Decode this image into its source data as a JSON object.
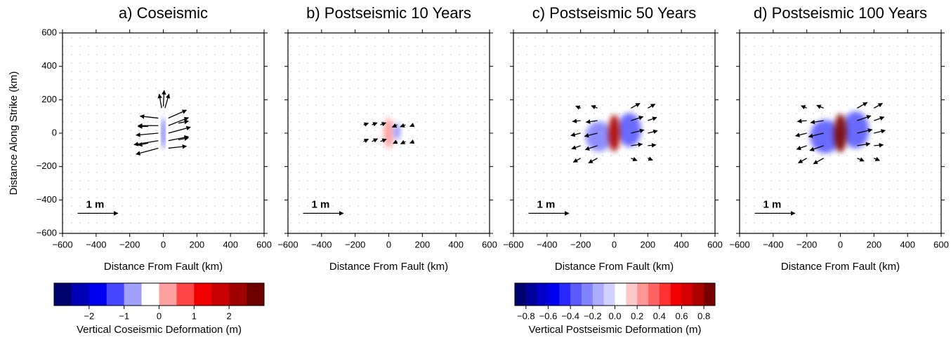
{
  "chart_data": [
    {
      "type": "vector",
      "title": "a) Coseismic",
      "xlabel": "Distance From Fault (km)",
      "ylabel": "Distance Along Strike (km)",
      "xlim": [
        -600,
        600
      ],
      "ylim": [
        -600,
        600
      ],
      "xticks": [
        {
          "value": -600,
          "label": "−600"
        },
        {
          "value": -400,
          "label": "−400"
        },
        {
          "value": -200,
          "label": "−200"
        },
        0,
        200,
        400,
        600
      ],
      "yticks": [
        {
          "value": -600,
          "label": "−600"
        },
        {
          "value": -400,
          "label": "−400"
        },
        {
          "value": -200,
          "label": "−200"
        },
        0,
        200,
        400,
        600
      ],
      "show_ytick_labels": true,
      "colorbar": 4,
      "arrow_scale": 240,
      "scale": {
        "label": "1 m",
        "value": 1
      },
      "arrows": {
        "x": [
          -30,
          -30,
          -30,
          -30,
          -30,
          30,
          30,
          30,
          30,
          30,
          -10,
          0,
          10,
          -90,
          -90,
          90,
          90
        ],
        "y": [
          -90,
          -45,
          0,
          45,
          90,
          -90,
          -45,
          0,
          45,
          90,
          150,
          160,
          150,
          -60,
          40,
          -40,
          60
        ],
        "u": [
          -0.55,
          -0.6,
          -0.55,
          -0.5,
          -0.45,
          0.45,
          0.5,
          0.55,
          0.5,
          0.45,
          -0.06,
          0.02,
          0.1,
          -0.25,
          -0.25,
          0.25,
          0.25
        ],
        "v": [
          -0.15,
          -0.1,
          -0.05,
          0,
          0.05,
          0.05,
          0.1,
          0.15,
          0.2,
          0.2,
          0.35,
          0.4,
          0.35,
          -0.05,
          0,
          0.05,
          0.05
        ]
      },
      "patches": [
        {
          "x": 0,
          "y": 0,
          "rx": 8,
          "ry": 95,
          "value": -1.8
        }
      ]
    },
    {
      "type": "vector",
      "title": "b) Postseismic 10 Years",
      "xlabel": "Distance From Fault (km)",
      "xlim": [
        -600,
        600
      ],
      "ylim": [
        -600,
        600
      ],
      "xticks": [
        {
          "value": -600,
          "label": "−600"
        },
        {
          "value": -400,
          "label": "−400"
        },
        {
          "value": -200,
          "label": "−200"
        },
        0,
        200,
        400,
        600
      ],
      "yticks": [
        -600,
        -400,
        -200,
        0,
        200,
        400,
        600
      ],
      "show_ytick_labels": false,
      "colorbar": 5,
      "arrow_scale": 240,
      "scale": {
        "label": "1 m",
        "value": 1
      },
      "arrows": {
        "x": [
          -150,
          -100,
          -50,
          -150,
          -100,
          -50,
          50,
          100,
          150,
          50,
          100,
          150
        ],
        "y": [
          -50,
          -50,
          -50,
          50,
          50,
          50,
          -50,
          -50,
          -50,
          50,
          50,
          50
        ],
        "u": [
          0.12,
          0.14,
          0.15,
          0.12,
          0.13,
          0.14,
          -0.1,
          -0.12,
          -0.1,
          -0.12,
          -0.13,
          -0.1
        ],
        "v": [
          0.06,
          0.07,
          0.06,
          0.04,
          0.05,
          0.05,
          -0.05,
          -0.06,
          -0.04,
          -0.06,
          -0.05,
          -0.04
        ]
      },
      "patches": [
        {
          "x": 0,
          "y": 0,
          "rx": 30,
          "ry": 90,
          "value": 0.3
        },
        {
          "x": 50,
          "y": 10,
          "rx": 18,
          "ry": 50,
          "value": -0.2
        }
      ]
    },
    {
      "type": "vector",
      "title": "c) Postseismic 50 Years",
      "xlabel": "Distance From Fault (km)",
      "xlim": [
        -600,
        600
      ],
      "ylim": [
        -600,
        600
      ],
      "xticks": [
        {
          "value": -600,
          "label": "−600"
        },
        {
          "value": -400,
          "label": "−400"
        },
        {
          "value": -200,
          "label": "−200"
        },
        0,
        200,
        400,
        600
      ],
      "yticks": [
        -600,
        -400,
        -200,
        0,
        200,
        400,
        600
      ],
      "show_ytick_labels": false,
      "colorbar": 5,
      "arrow_scale": 240,
      "scale": {
        "label": "1 m",
        "value": 1
      },
      "arrows": {
        "x": [
          -200,
          -200,
          -200,
          -200,
          -200,
          -100,
          -100,
          -100,
          -100,
          -100,
          100,
          100,
          100,
          100,
          100,
          200,
          200,
          200,
          200,
          200
        ],
        "y": [
          -150,
          -75,
          0,
          75,
          150,
          -150,
          -75,
          0,
          75,
          150,
          -150,
          -75,
          0,
          75,
          150,
          -150,
          -75,
          0,
          75,
          150
        ],
        "u": [
          -0.18,
          -0.22,
          -0.24,
          -0.2,
          -0.12,
          -0.22,
          -0.3,
          -0.32,
          -0.28,
          -0.15,
          0.15,
          0.28,
          0.32,
          0.3,
          0.22,
          0.12,
          0.2,
          0.24,
          0.22,
          0.18
        ],
        "v": [
          -0.1,
          -0.08,
          -0.06,
          -0.02,
          0.05,
          -0.12,
          -0.1,
          -0.08,
          -0.04,
          0.06,
          -0.06,
          0.04,
          0.08,
          0.1,
          0.12,
          -0.05,
          0.02,
          0.06,
          0.08,
          0.1
        ]
      },
      "patches": [
        {
          "x": -90,
          "y": -20,
          "rx": 80,
          "ry": 90,
          "value": -0.2
        },
        {
          "x": 90,
          "y": 20,
          "rx": 70,
          "ry": 100,
          "value": -0.3
        },
        {
          "x": 0,
          "y": 0,
          "rx": 35,
          "ry": 110,
          "value": 0.8
        }
      ]
    },
    {
      "type": "vector",
      "title": "d) Postseismic 100 Years",
      "xlabel": "Distance From Fault (km)",
      "xlim": [
        -600,
        600
      ],
      "ylim": [
        -600,
        600
      ],
      "xticks": [
        {
          "value": -600,
          "label": "−600"
        },
        {
          "value": -400,
          "label": "−400"
        },
        {
          "value": -200,
          "label": "−200"
        },
        0,
        200,
        400,
        600
      ],
      "yticks": [
        -600,
        -400,
        -200,
        0,
        200,
        400,
        600
      ],
      "show_ytick_labels": false,
      "colorbar": 5,
      "arrow_scale": 240,
      "scale": {
        "label": "1 m",
        "value": 1
      },
      "arrows": {
        "x": [
          -200,
          -200,
          -200,
          -200,
          -200,
          -100,
          -100,
          -100,
          -100,
          -100,
          100,
          100,
          100,
          100,
          100,
          200,
          200,
          200,
          200,
          200
        ],
        "y": [
          -150,
          -75,
          0,
          75,
          150,
          -150,
          -75,
          0,
          75,
          150,
          -150,
          -75,
          0,
          75,
          150,
          -150,
          -75,
          0,
          75,
          150
        ],
        "u": [
          -0.21,
          -0.25,
          -0.28,
          -0.23,
          -0.14,
          -0.25,
          -0.34,
          -0.37,
          -0.32,
          -0.17,
          0.17,
          0.32,
          0.37,
          0.34,
          0.25,
          0.14,
          0.23,
          0.28,
          0.25,
          0.21
        ],
        "v": [
          -0.12,
          -0.09,
          -0.07,
          -0.02,
          0.06,
          -0.14,
          -0.12,
          -0.09,
          -0.05,
          0.07,
          -0.07,
          0.05,
          0.09,
          0.12,
          0.14,
          -0.06,
          0.02,
          0.07,
          0.09,
          0.12
        ]
      },
      "patches": [
        {
          "x": -90,
          "y": -20,
          "rx": 90,
          "ry": 100,
          "value": -0.3
        },
        {
          "x": 90,
          "y": 20,
          "rx": 80,
          "ry": 110,
          "value": -0.35
        },
        {
          "x": 0,
          "y": 0,
          "rx": 38,
          "ry": 115,
          "value": 0.9
        }
      ]
    },
    {
      "type": "colorbar",
      "label": "Vertical Coseismic Deformation (m)",
      "bounds": [
        -3,
        -2.5,
        -2,
        -1.5,
        -1,
        -0.5,
        0,
        0.5,
        1,
        1.5,
        2,
        2.5,
        3
      ],
      "colors": [
        "#00006e",
        "#0000b4",
        "#0000f0",
        "#4646ff",
        "#a0a0ff",
        "#ffffff",
        "#ff9f9f",
        "#ff4646",
        "#f00000",
        "#c80000",
        "#a00000",
        "#6e0000"
      ],
      "ticks": [
        {
          "value": -2,
          "label": "−2"
        },
        {
          "value": -1,
          "label": "−1"
        },
        0,
        1,
        2
      ]
    },
    {
      "type": "colorbar",
      "label": "Vertical Postseismic Deformation (m)",
      "bounds": [
        -0.9,
        -0.8,
        -0.7,
        -0.6,
        -0.5,
        -0.4,
        -0.3,
        -0.2,
        -0.1,
        0,
        0.1,
        0.2,
        0.3,
        0.4,
        0.5,
        0.6,
        0.7,
        0.8,
        0.9
      ],
      "colors": [
        "#00006e",
        "#00009a",
        "#0000c8",
        "#0000f0",
        "#2828ff",
        "#5a5aff",
        "#8282ff",
        "#aaaaff",
        "#d2d2ff",
        "#ffffff",
        "#ffc8c8",
        "#ff9696",
        "#ff6464",
        "#ff3232",
        "#f00000",
        "#d20000",
        "#aa0000",
        "#780000"
      ],
      "ticks": [
        {
          "value": -0.8,
          "label": "−0.8"
        },
        {
          "value": -0.6,
          "label": "−0.6"
        },
        {
          "value": -0.4,
          "label": "−0.4"
        },
        {
          "value": -0.2,
          "label": "−0.2"
        },
        {
          "value": 0,
          "label": "0.0"
        },
        0.2,
        0.4,
        0.6,
        0.8
      ]
    }
  ]
}
